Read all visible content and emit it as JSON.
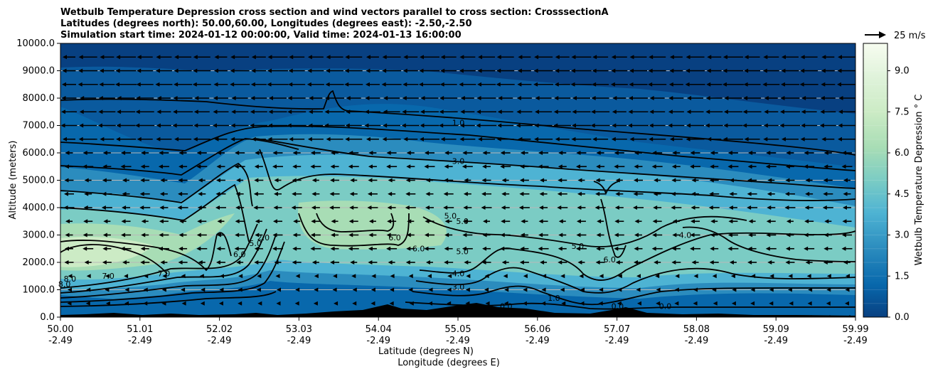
{
  "chart_data": {
    "type": "contour",
    "title_lines": [
      "Wetbulb Temperature Depression cross section and wind vectors parallel to cross section: CrosssectionA",
      "Latitudes (degrees north): 50.00,60.00, Longitudes (degrees east): -2.50,-2.50",
      "Simulation start time: 2024-01-12 00:00:00, Valid time: 2024-01-13 16:00:00"
    ],
    "xlabel_lines": [
      "Latitude (degrees N)",
      "Longitude (degrees E)"
    ],
    "ylabel": "Altitude (meters)",
    "ylim": [
      0,
      10000
    ],
    "yticks": [
      "0.0",
      "1000.0",
      "2000.0",
      "3000.0",
      "4000.0",
      "5000.0",
      "6000.0",
      "7000.0",
      "8000.0",
      "9000.0",
      "10000.0"
    ],
    "xticks": [
      {
        "lat": "50.00",
        "lon": "-2.49"
      },
      {
        "lat": "51.01",
        "lon": "-2.49"
      },
      {
        "lat": "52.02",
        "lon": "-2.49"
      },
      {
        "lat": "53.03",
        "lon": "-2.49"
      },
      {
        "lat": "54.04",
        "lon": "-2.49"
      },
      {
        "lat": "55.05",
        "lon": "-2.49"
      },
      {
        "lat": "56.06",
        "lon": "-2.49"
      },
      {
        "lat": "57.07",
        "lon": "-2.49"
      },
      {
        "lat": "58.08",
        "lon": "-2.49"
      },
      {
        "lat": "59.09",
        "lon": "-2.49"
      },
      {
        "lat": "59.99",
        "lon": "-2.49"
      }
    ],
    "xlim": [
      50.0,
      59.99
    ],
    "grid": "horizontal",
    "colorbar": {
      "label": "Wetbulb Temperature Depression ° C",
      "range": [
        0,
        10
      ],
      "ticks": [
        "0.0",
        "1.5",
        "3.0",
        "4.5",
        "6.0",
        "7.5",
        "9.0"
      ],
      "colormap": [
        "#084081",
        "#0868ac",
        "#2b8cbe",
        "#4eb3d3",
        "#7bccc4",
        "#a8ddb5",
        "#ccebc5",
        "#e0f3db",
        "#f7fcf0"
      ]
    },
    "quiver_key": "25 m/s",
    "contour_labels": [
      {
        "text": "1.0",
        "lat": 55.0,
        "alt": 7000
      },
      {
        "text": "3.0",
        "lat": 55.0,
        "alt": 5600
      },
      {
        "text": "5.0",
        "lat": 54.9,
        "alt": 3600
      },
      {
        "text": "5.0",
        "lat": 55.05,
        "alt": 3400
      },
      {
        "text": "6.0",
        "lat": 54.2,
        "alt": 2800
      },
      {
        "text": "6.0",
        "lat": 54.5,
        "alt": 2400
      },
      {
        "text": "5.0",
        "lat": 55.05,
        "alt": 2300
      },
      {
        "text": "4.0",
        "lat": 55.0,
        "alt": 1500
      },
      {
        "text": "3.0",
        "lat": 55.0,
        "alt": 1000
      },
      {
        "text": "5.0",
        "lat": 56.5,
        "alt": 2500
      },
      {
        "text": "6.0",
        "lat": 56.9,
        "alt": 2000
      },
      {
        "text": "4.0",
        "lat": 57.85,
        "alt": 2900
      },
      {
        "text": "1.0",
        "lat": 56.2,
        "alt": 600
      },
      {
        "text": "2.0",
        "lat": 52.55,
        "alt": 2800
      },
      {
        "text": "6.0",
        "lat": 52.25,
        "alt": 2200
      },
      {
        "text": "5.0",
        "lat": 52.45,
        "alt": 2600
      },
      {
        "text": "7.0",
        "lat": 51.3,
        "alt": 1500
      },
      {
        "text": "7.0",
        "lat": 50.6,
        "alt": 1400
      },
      {
        "text": "8.0",
        "lat": 50.12,
        "alt": 1300
      },
      {
        "text": "8.0",
        "lat": 50.05,
        "alt": 1100
      },
      {
        "text": "0.0",
        "lat": 57.6,
        "alt": 300
      },
      {
        "text": "0.0",
        "lat": 55.6,
        "alt": 300
      },
      {
        "text": "0.0",
        "lat": 57.0,
        "alt": 300
      }
    ]
  }
}
